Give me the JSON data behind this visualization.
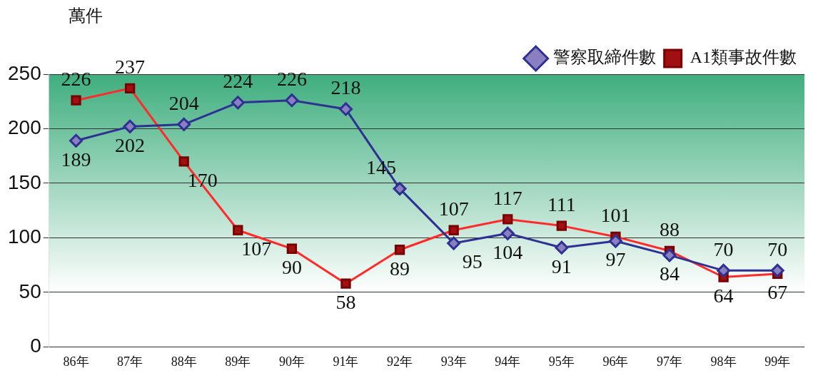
{
  "chart_data": {
    "type": "line",
    "ylabel": "萬件",
    "categories": [
      "86年",
      "87年",
      "88年",
      "89年",
      "90年",
      "91年",
      "92年",
      "93年",
      "94年",
      "95年",
      "96年",
      "97年",
      "98年",
      "99年"
    ],
    "series": [
      {
        "name": "警察取締件數",
        "color": "#2e3192",
        "marker": "diamond",
        "values": [
          189,
          202,
          204,
          224,
          226,
          218,
          145,
          95,
          104,
          91,
          97,
          84,
          70,
          70
        ]
      },
      {
        "name": "A1類事故件數",
        "color": "#ff2a2a",
        "marker": "square",
        "values": [
          226,
          237,
          170,
          107,
          90,
          58,
          89,
          107,
          117,
          111,
          101,
          88,
          64,
          67
        ]
      }
    ],
    "ylim": [
      0,
      250
    ],
    "yticks": [
      0,
      50,
      100,
      150,
      200,
      250
    ],
    "grid": "y",
    "legend": "top right",
    "data_labels": true,
    "line_style": "solid"
  }
}
